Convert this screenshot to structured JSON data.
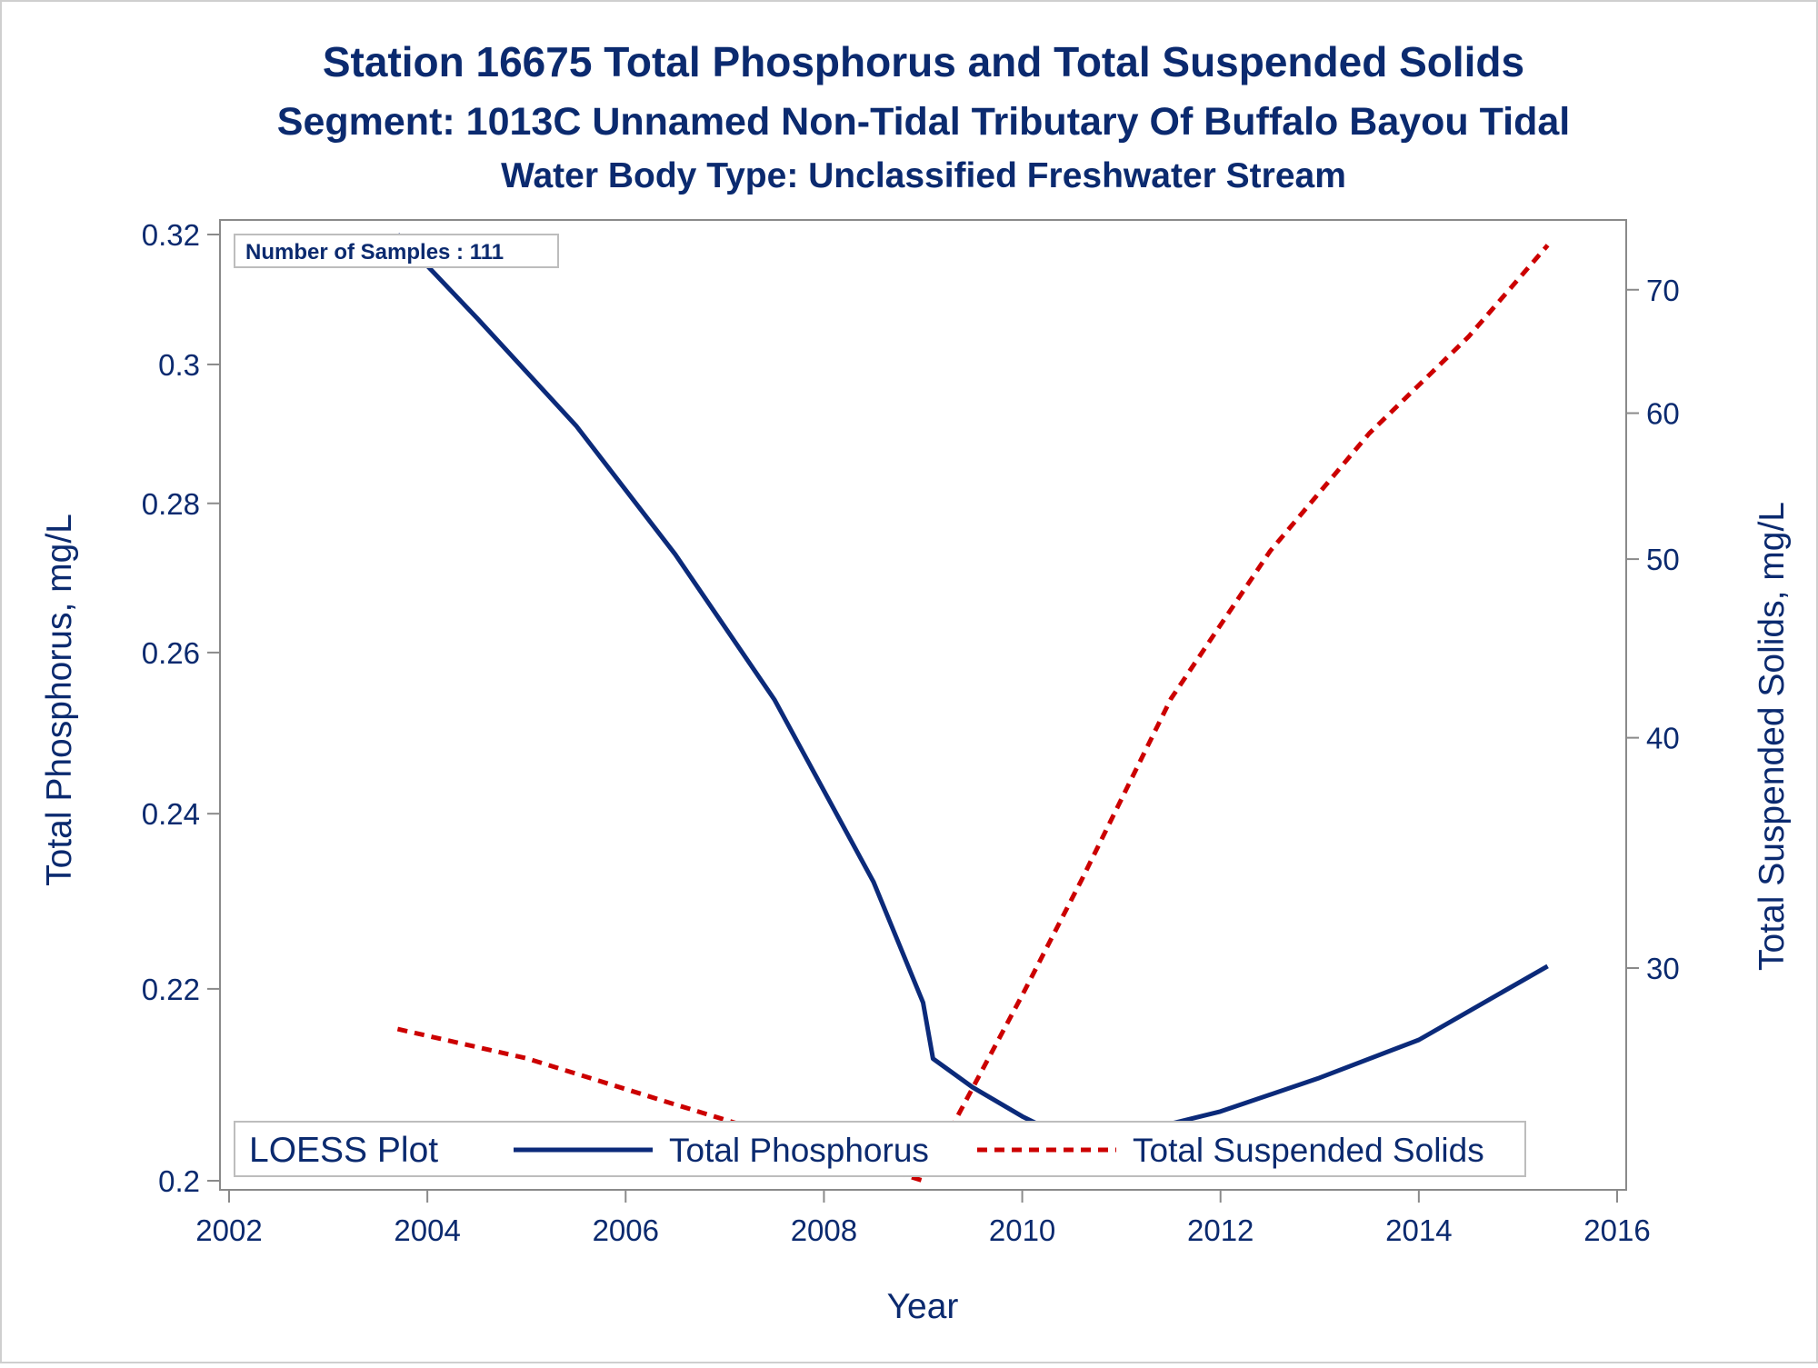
{
  "titles": {
    "line1": "Station 16675  Total Phosphorus and Total Suspended Solids",
    "line2": "Segment: 1013C  Unnamed Non-Tidal Tributary Of Buffalo Bayou Tidal",
    "line3": "Water Body Type: Unclassified Freshwater Stream"
  },
  "inset_label": "Number of Samples : 111",
  "legend": {
    "title": "LOESS Plot",
    "entries": [
      "Total Phosphorus",
      "Total Suspended Solids"
    ]
  },
  "colors": {
    "text": "#0b2a6f",
    "phosphorus": "#0b2a7a",
    "tss": "#cc0000",
    "axis": "#8a8a8a"
  },
  "chart_data": {
    "type": "line",
    "xlabel": "Year",
    "ylabel": "Total Phosphorus, mg/L",
    "y2label": "Total Suspended Solids, mg/L",
    "x_range": [
      2002,
      2016
    ],
    "x_ticks": [
      "2002",
      "2004",
      "2006",
      "2008",
      "2010",
      "2012",
      "2014",
      "2016"
    ],
    "y_log_scale": true,
    "y_range": [
      0.2,
      0.32
    ],
    "y_ticks": [
      "0.2",
      "0.22",
      "0.24",
      "0.26",
      "0.28",
      "0.3",
      "0.32"
    ],
    "y2_log_scale": true,
    "y2_range": [
      23,
      75
    ],
    "y2_ticks": [
      "30",
      "40",
      "50",
      "60",
      "70"
    ],
    "grid": false,
    "legend_position": "bottom-inside",
    "series": [
      {
        "name": "Total Phosphorus",
        "axis": "left",
        "style": "solid",
        "points": [
          [
            2003.7,
            0.32
          ],
          [
            2004.5,
            0.307
          ],
          [
            2005.5,
            0.291
          ],
          [
            2006.5,
            0.273
          ],
          [
            2007.5,
            0.254
          ],
          [
            2008.5,
            0.232
          ],
          [
            2009.0,
            0.2185
          ],
          [
            2009.1,
            0.2125
          ],
          [
            2009.5,
            0.2095
          ],
          [
            2010.0,
            0.2065
          ],
          [
            2010.6,
            0.2035
          ],
          [
            2011.0,
            0.2045
          ],
          [
            2012.0,
            0.207
          ],
          [
            2013.0,
            0.2105
          ],
          [
            2014.0,
            0.2145
          ],
          [
            2015.3,
            0.2225
          ]
        ]
      },
      {
        "name": "Total Suspended Solids",
        "axis": "right",
        "style": "dashed",
        "points": [
          [
            2003.7,
            27.8
          ],
          [
            2005.0,
            26.8
          ],
          [
            2006.5,
            25.3
          ],
          [
            2008.0,
            23.9
          ],
          [
            2009.0,
            23.0
          ],
          [
            2010.0,
            29.0
          ],
          [
            2010.6,
            33.5
          ],
          [
            2011.5,
            42.0
          ],
          [
            2012.5,
            50.5
          ],
          [
            2013.5,
            58.5
          ],
          [
            2014.5,
            66.0
          ],
          [
            2015.3,
            74.0
          ]
        ]
      }
    ]
  }
}
